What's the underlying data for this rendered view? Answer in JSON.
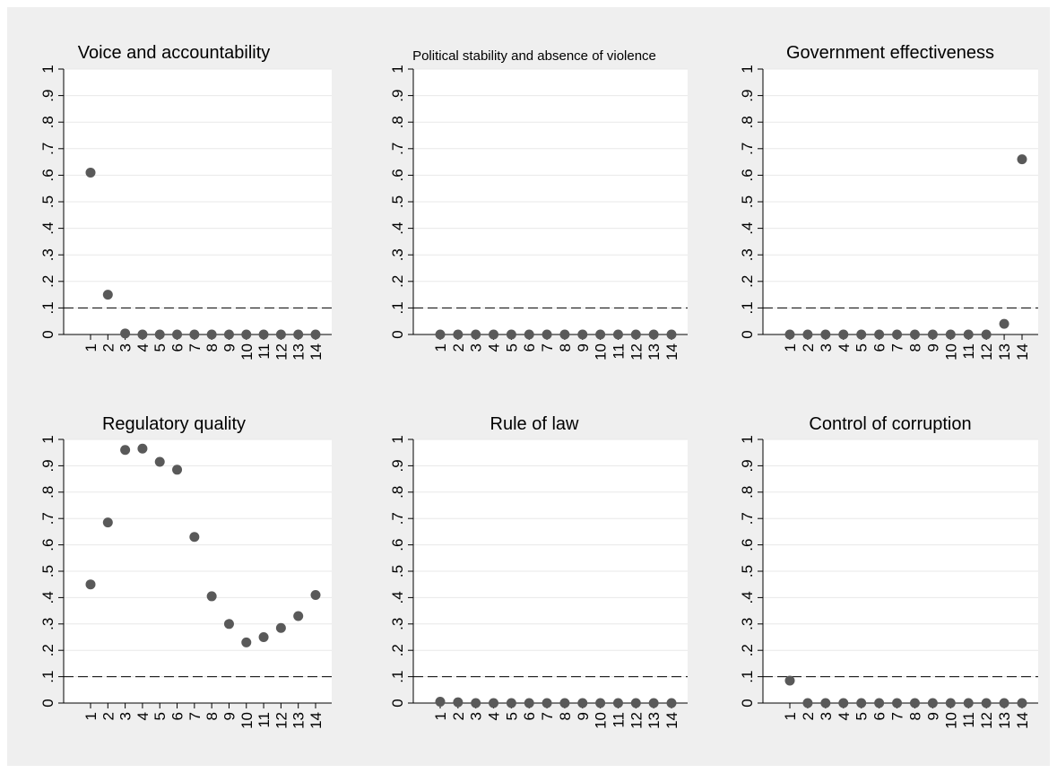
{
  "chart_data": [
    {
      "type": "scatter",
      "title": "Voice and accountability",
      "x": [
        1,
        2,
        3,
        4,
        5,
        6,
        7,
        8,
        9,
        10,
        11,
        12,
        13,
        14
      ],
      "y": [
        0.61,
        0.15,
        0.004,
        0,
        0,
        0,
        0,
        0,
        0,
        0,
        0,
        0,
        0,
        0
      ],
      "reference_line_y": 0.1,
      "ylim": [
        0,
        1
      ],
      "yticks": [
        "0",
        ".1",
        ".2",
        ".3",
        ".4",
        ".5",
        ".6",
        ".7",
        ".8",
        ".9",
        "1"
      ],
      "xticks": [
        "1",
        "2",
        "3",
        "4",
        "5",
        "6",
        "7",
        "8",
        "9",
        "10",
        "11",
        "12",
        "13",
        "14"
      ]
    },
    {
      "type": "scatter",
      "title": "Political stability and absence of violence",
      "x": [
        1,
        2,
        3,
        4,
        5,
        6,
        7,
        8,
        9,
        10,
        11,
        12,
        13,
        14
      ],
      "y": [
        0,
        0,
        0,
        0,
        0,
        0,
        0,
        0,
        0,
        0,
        0,
        0,
        0,
        0
      ],
      "reference_line_y": 0.1,
      "ylim": [
        0,
        1
      ],
      "yticks": [
        "0",
        ".1",
        ".2",
        ".3",
        ".4",
        ".5",
        ".6",
        ".7",
        ".8",
        ".9",
        "1"
      ],
      "xticks": [
        "1",
        "2",
        "3",
        "4",
        "5",
        "6",
        "7",
        "8",
        "9",
        "10",
        "11",
        "12",
        "13",
        "14"
      ]
    },
    {
      "type": "scatter",
      "title": "Government effectiveness",
      "x": [
        1,
        2,
        3,
        4,
        5,
        6,
        7,
        8,
        9,
        10,
        11,
        12,
        13,
        14
      ],
      "y": [
        0,
        0,
        0,
        0,
        0,
        0,
        0,
        0,
        0,
        0,
        0,
        0,
        0.04,
        0.66
      ],
      "reference_line_y": 0.1,
      "ylim": [
        0,
        1
      ],
      "yticks": [
        "0",
        ".1",
        ".2",
        ".3",
        ".4",
        ".5",
        ".6",
        ".7",
        ".8",
        ".9",
        "1"
      ],
      "xticks": [
        "1",
        "2",
        "3",
        "4",
        "5",
        "6",
        "7",
        "8",
        "9",
        "10",
        "11",
        "12",
        "13",
        "14"
      ]
    },
    {
      "type": "scatter",
      "title": "Regulatory quality",
      "x": [
        1,
        2,
        3,
        4,
        5,
        6,
        7,
        8,
        9,
        10,
        11,
        12,
        13,
        14
      ],
      "y": [
        0.45,
        0.685,
        0.96,
        0.965,
        0.915,
        0.885,
        0.63,
        0.405,
        0.3,
        0.23,
        0.25,
        0.285,
        0.33,
        0.41
      ],
      "reference_line_y": 0.1,
      "ylim": [
        0,
        1
      ],
      "yticks": [
        "0",
        ".1",
        ".2",
        ".3",
        ".4",
        ".5",
        ".6",
        ".7",
        ".8",
        ".9",
        "1"
      ],
      "xticks": [
        "1",
        "2",
        "3",
        "4",
        "5",
        "6",
        "7",
        "8",
        "9",
        "10",
        "11",
        "12",
        "13",
        "14"
      ]
    },
    {
      "type": "scatter",
      "title": "Rule of law",
      "x": [
        1,
        2,
        3,
        4,
        5,
        6,
        7,
        8,
        9,
        10,
        11,
        12,
        13,
        14
      ],
      "y": [
        0.005,
        0.003,
        0,
        0,
        0,
        0,
        0,
        0,
        0,
        0,
        0,
        0,
        0,
        0
      ],
      "reference_line_y": 0.1,
      "ylim": [
        0,
        1
      ],
      "yticks": [
        "0",
        ".1",
        ".2",
        ".3",
        ".4",
        ".5",
        ".6",
        ".7",
        ".8",
        ".9",
        "1"
      ],
      "xticks": [
        "1",
        "2",
        "3",
        "4",
        "5",
        "6",
        "7",
        "8",
        "9",
        "10",
        "11",
        "12",
        "13",
        "14"
      ]
    },
    {
      "type": "scatter",
      "title": "Control of corruption",
      "x": [
        1,
        2,
        3,
        4,
        5,
        6,
        7,
        8,
        9,
        10,
        11,
        12,
        13,
        14
      ],
      "y": [
        0.085,
        0,
        0,
        0,
        0,
        0,
        0,
        0,
        0,
        0,
        0,
        0,
        0,
        0
      ],
      "reference_line_y": 0.1,
      "ylim": [
        0,
        1
      ],
      "yticks": [
        "0",
        ".1",
        ".2",
        ".3",
        ".4",
        ".5",
        ".6",
        ".7",
        ".8",
        ".9",
        "1"
      ],
      "xticks": [
        "1",
        "2",
        "3",
        "4",
        "5",
        "6",
        "7",
        "8",
        "9",
        "10",
        "11",
        "12",
        "13",
        "14"
      ]
    }
  ],
  "style": {
    "background": "#efefef",
    "plot_background": "#ffffff",
    "marker_color": "#595959",
    "grid_color": "#e8e8e8",
    "axis_color": "#000000",
    "reference_line_color": "#000000"
  }
}
